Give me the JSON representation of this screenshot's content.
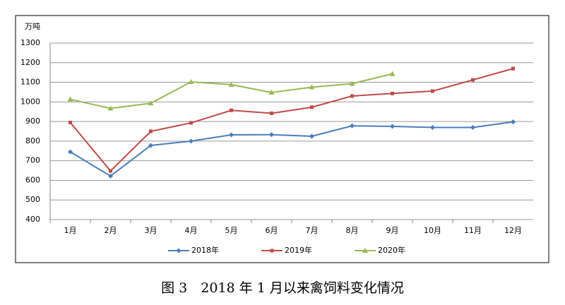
{
  "chart_data": {
    "type": "line",
    "y_unit": "万吨",
    "categories": [
      "1月",
      "2月",
      "3月",
      "4月",
      "5月",
      "6月",
      "7月",
      "8月",
      "9月",
      "10月",
      "11月",
      "12月"
    ],
    "series": [
      {
        "name": "2018年",
        "color": "#4a7ebb",
        "marker": "diamond",
        "values": [
          745,
          622,
          778,
          800,
          832,
          833,
          825,
          878,
          875,
          870,
          870,
          898
        ]
      },
      {
        "name": "2019年",
        "color": "#be4b48",
        "marker": "square",
        "values": [
          895,
          648,
          850,
          893,
          957,
          942,
          973,
          1030,
          1043,
          1055,
          1112,
          1170
        ]
      },
      {
        "name": "2020年",
        "color": "#98b954",
        "marker": "triangle",
        "values": [
          1013,
          967,
          993,
          1102,
          1088,
          1048,
          1075,
          1093,
          1143,
          null,
          null,
          null
        ]
      }
    ],
    "ylim": [
      400,
      1300
    ],
    "yticks": [
      400,
      500,
      600,
      700,
      800,
      900,
      1000,
      1100,
      1200,
      1300
    ],
    "grid": true,
    "legend": "bottom",
    "caption": "图 3　2018 年 1 月以来禽饲料变化情况"
  }
}
